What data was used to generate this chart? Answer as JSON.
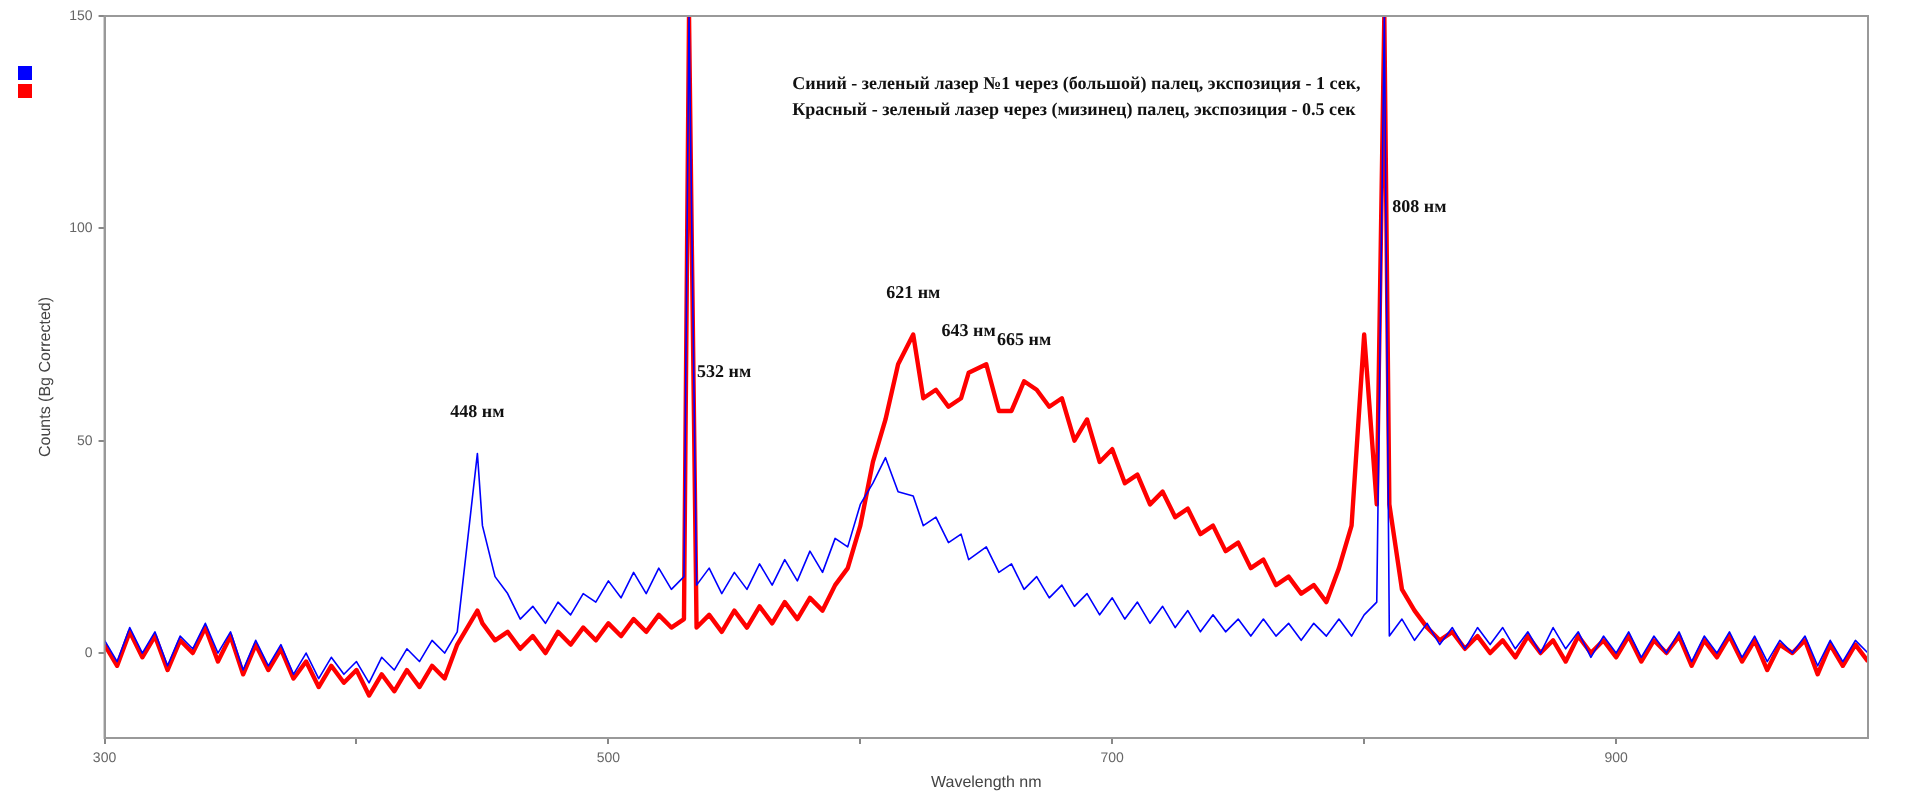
{
  "chart_data": {
    "type": "line",
    "xlabel": "Wavelength nm",
    "ylabel": "Counts (Bg Corrected)",
    "x": [
      300,
      305,
      310,
      315,
      320,
      325,
      330,
      335,
      340,
      345,
      350,
      355,
      360,
      365,
      370,
      375,
      380,
      385,
      390,
      395,
      400,
      405,
      410,
      415,
      420,
      425,
      430,
      435,
      440,
      448,
      450,
      455,
      460,
      465,
      470,
      475,
      480,
      485,
      490,
      495,
      500,
      505,
      510,
      515,
      520,
      525,
      530,
      532,
      535,
      540,
      545,
      550,
      555,
      560,
      565,
      570,
      575,
      580,
      585,
      590,
      595,
      600,
      605,
      610,
      615,
      621,
      625,
      630,
      635,
      640,
      643,
      650,
      655,
      660,
      665,
      670,
      675,
      680,
      685,
      690,
      695,
      700,
      705,
      710,
      715,
      720,
      725,
      730,
      735,
      740,
      745,
      750,
      755,
      760,
      765,
      770,
      775,
      780,
      785,
      790,
      795,
      800,
      805,
      808,
      810,
      815,
      820,
      825,
      830,
      835,
      840,
      845,
      850,
      855,
      860,
      865,
      870,
      875,
      880,
      885,
      890,
      895,
      900,
      905,
      910,
      915,
      920,
      925,
      930,
      935,
      940,
      945,
      950,
      955,
      960,
      965,
      970,
      975,
      980,
      985,
      990,
      995,
      1000
    ],
    "series": [
      {
        "color": "#0000ff",
        "values": [
          3,
          -2,
          6,
          0,
          5,
          -3,
          4,
          1,
          7,
          0,
          5,
          -4,
          3,
          -3,
          2,
          -5,
          0,
          -6,
          -1,
          -5,
          -2,
          -7,
          -1,
          -4,
          1,
          -2,
          3,
          0,
          5,
          47,
          30,
          18,
          14,
          8,
          11,
          7,
          12,
          9,
          14,
          12,
          17,
          13,
          19,
          14,
          20,
          15,
          18,
          150,
          16,
          20,
          14,
          19,
          15,
          21,
          16,
          22,
          17,
          24,
          19,
          27,
          25,
          35,
          40,
          46,
          38,
          37,
          30,
          32,
          26,
          28,
          22,
          25,
          19,
          21,
          15,
          18,
          13,
          16,
          11,
          14,
          9,
          13,
          8,
          12,
          7,
          11,
          6,
          10,
          5,
          9,
          5,
          8,
          4,
          8,
          4,
          7,
          3,
          7,
          4,
          8,
          4,
          9,
          12,
          150,
          4,
          8,
          3,
          7,
          2,
          6,
          1,
          6,
          2,
          6,
          1,
          5,
          0,
          6,
          1,
          5,
          -1,
          4,
          0,
          5,
          -1,
          4,
          0,
          5,
          -2,
          4,
          0,
          5,
          -1,
          4,
          -2,
          3,
          0,
          4,
          -3,
          3,
          -2,
          3,
          0
        ]
      },
      {
        "color": "#ff0000",
        "values": [
          2,
          -3,
          5,
          -1,
          4,
          -4,
          3,
          0,
          6,
          -2,
          4,
          -5,
          2,
          -4,
          1,
          -6,
          -2,
          -8,
          -3,
          -7,
          -4,
          -10,
          -5,
          -9,
          -4,
          -8,
          -3,
          -6,
          2,
          10,
          7,
          3,
          5,
          1,
          4,
          0,
          5,
          2,
          6,
          3,
          7,
          4,
          8,
          5,
          9,
          6,
          8,
          150,
          6,
          9,
          5,
          10,
          6,
          11,
          7,
          12,
          8,
          13,
          10,
          16,
          20,
          30,
          45,
          55,
          68,
          75,
          60,
          62,
          58,
          60,
          66,
          68,
          57,
          57,
          64,
          62,
          58,
          60,
          50,
          55,
          45,
          48,
          40,
          42,
          35,
          38,
          32,
          34,
          28,
          30,
          24,
          26,
          20,
          22,
          16,
          18,
          14,
          16,
          12,
          20,
          30,
          75,
          35,
          150,
          35,
          15,
          10,
          6,
          3,
          5,
          1,
          4,
          0,
          3,
          -1,
          4,
          0,
          3,
          -2,
          4,
          0,
          3,
          -1,
          4,
          -2,
          3,
          0,
          4,
          -3,
          3,
          -1,
          4,
          -2,
          3,
          -4,
          2,
          0,
          3,
          -5,
          2,
          -3,
          2,
          -2
        ]
      }
    ],
    "xlim": [
      300,
      1000
    ],
    "xticks": [
      300,
      {
        "value": 400,
        "label": null
      },
      500,
      {
        "value": 600,
        "label": null
      },
      700,
      {
        "value": 800,
        "label": null
      },
      900
    ],
    "ylim": [
      -20,
      150
    ],
    "yticks": [
      0,
      50,
      100,
      150
    ],
    "annotations": [
      "Синий - зеленый лазер №1 через (большой) палец, экспозиция - 1 сек,",
      "Красный - зеленый лазер через (мизинец) палец, экспозиция - 0.5 сек",
      {
        "text": "448 нм",
        "x": 448,
        "y": 47
      },
      {
        "text": "532 нм",
        "x": 532,
        "y": 66
      },
      {
        "text": "621 нм",
        "x": 621,
        "y": 75
      },
      {
        "text": "643 нм",
        "x": 643,
        "y": 66
      },
      {
        "text": "665 нм",
        "x": 665,
        "y": 64
      },
      {
        "text": "808 нм",
        "x": 808,
        "y": 105
      }
    ],
    "grid": false,
    "marker": "none",
    "line_style": "solid"
  }
}
